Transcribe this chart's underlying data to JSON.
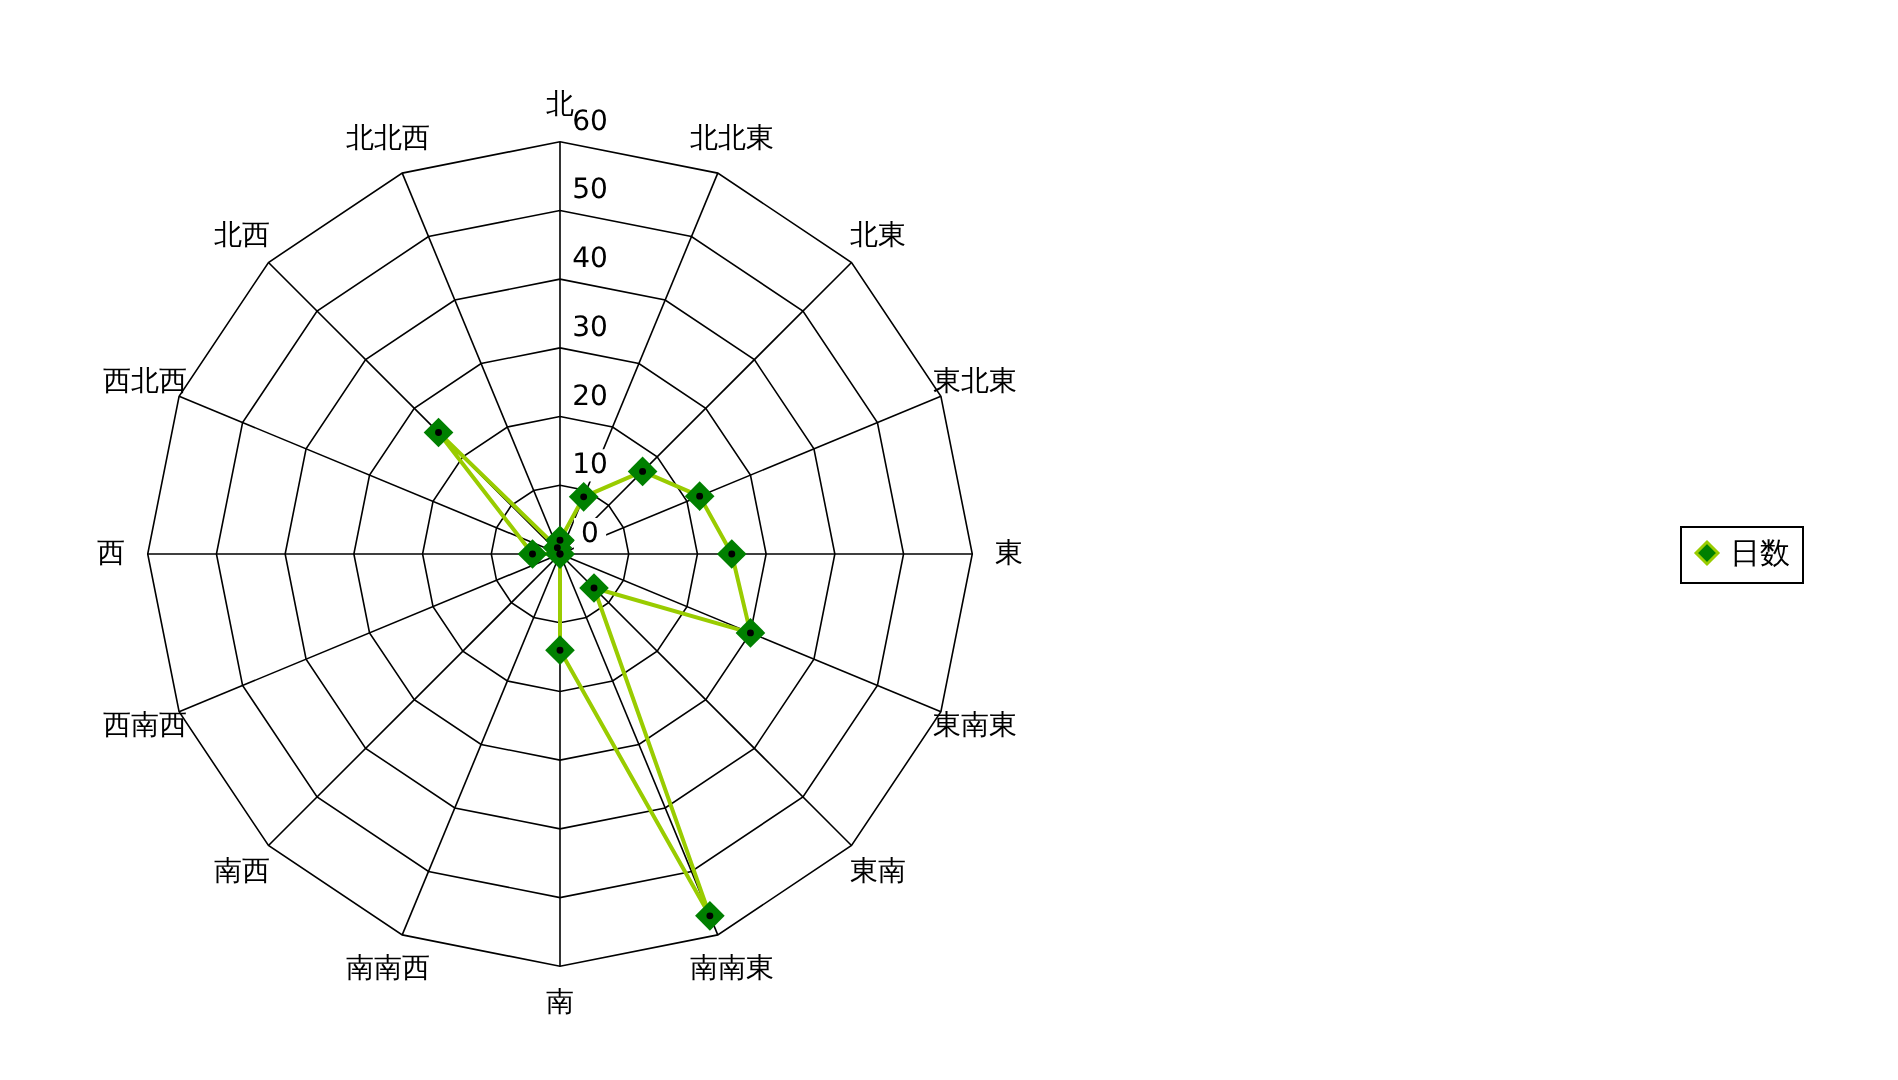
{
  "chart_data": {
    "type": "radar",
    "categories": [
      "北",
      "北北東",
      "北東",
      "東北東",
      "東",
      "東南東",
      "東南",
      "南南東",
      "南",
      "南南西",
      "南西",
      "西南西",
      "西",
      "西北西",
      "北西",
      "北北西"
    ],
    "series": [
      {
        "name": "日数",
        "color": "#99cc00",
        "values": [
          2,
          9,
          17,
          22,
          25,
          30,
          7,
          57,
          14,
          null,
          0,
          0,
          4,
          null,
          25,
          1
        ]
      }
    ],
    "ylim": [
      0,
      60
    ],
    "yticks": [
      0,
      10,
      20,
      30,
      40,
      50,
      60
    ],
    "grid": true,
    "legend": "right",
    "marker": "diamond",
    "line_style": "solid"
  }
}
